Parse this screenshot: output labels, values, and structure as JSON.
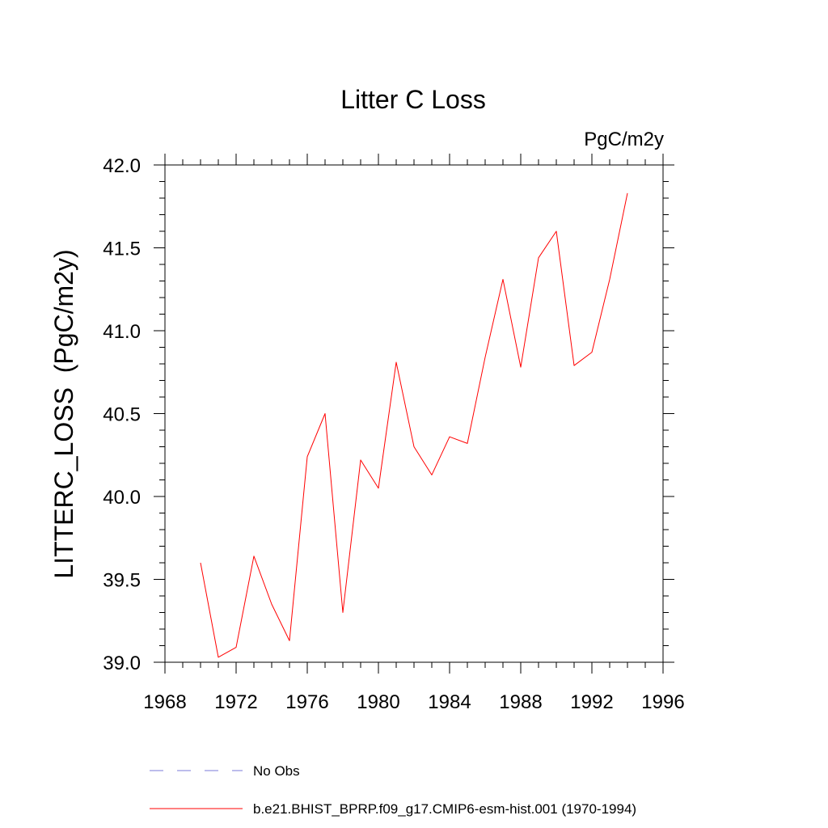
{
  "chart_data": {
    "type": "line",
    "title": "Litter C Loss",
    "units_label": "PgC/m2y",
    "ylabel": "LITTERC_LOSS  (PgC/m2y)",
    "xlabel": "",
    "xlim": [
      1968,
      1996
    ],
    "ylim": [
      39.0,
      42.0
    ],
    "xticks": [
      1968,
      1972,
      1976,
      1980,
      1984,
      1988,
      1992,
      1996
    ],
    "xtick_labels": [
      "1968",
      "1972",
      "1976",
      "1980",
      "1984",
      "1988",
      "1992",
      "1996"
    ],
    "yticks": [
      39.0,
      39.5,
      40.0,
      40.5,
      41.0,
      41.5,
      42.0
    ],
    "ytick_labels": [
      "39.0",
      "39.5",
      "40.0",
      "40.5",
      "41.0",
      "41.5",
      "42.0"
    ],
    "grid": false,
    "legend_position": "bottom",
    "series": [
      {
        "name": "b.e21.BHIST_BPRP.f09_g17.CMIP6-esm-hist.001 (1970-1994)",
        "color": "#ff0000",
        "x": [
          1970,
          1971,
          1972,
          1973,
          1974,
          1975,
          1976,
          1977,
          1978,
          1979,
          1980,
          1981,
          1982,
          1983,
          1984,
          1985,
          1986,
          1987,
          1988,
          1989,
          1990,
          1991,
          1992,
          1993,
          1994
        ],
        "y": [
          39.6,
          39.03,
          39.09,
          39.64,
          39.35,
          39.13,
          40.24,
          40.5,
          39.3,
          40.22,
          40.05,
          40.81,
          40.3,
          40.13,
          40.36,
          40.32,
          40.84,
          41.31,
          40.78,
          41.44,
          41.6,
          40.79,
          40.87,
          41.31,
          41.83
        ]
      }
    ],
    "legend": [
      {
        "label": "No Obs",
        "color": "#7b7bd8",
        "style": "dashed"
      },
      {
        "label": "b.e21.BHIST_BPRP.f09_g17.CMIP6-esm-hist.001 (1970-1994)",
        "color": "#ff0000",
        "style": "solid"
      }
    ]
  }
}
